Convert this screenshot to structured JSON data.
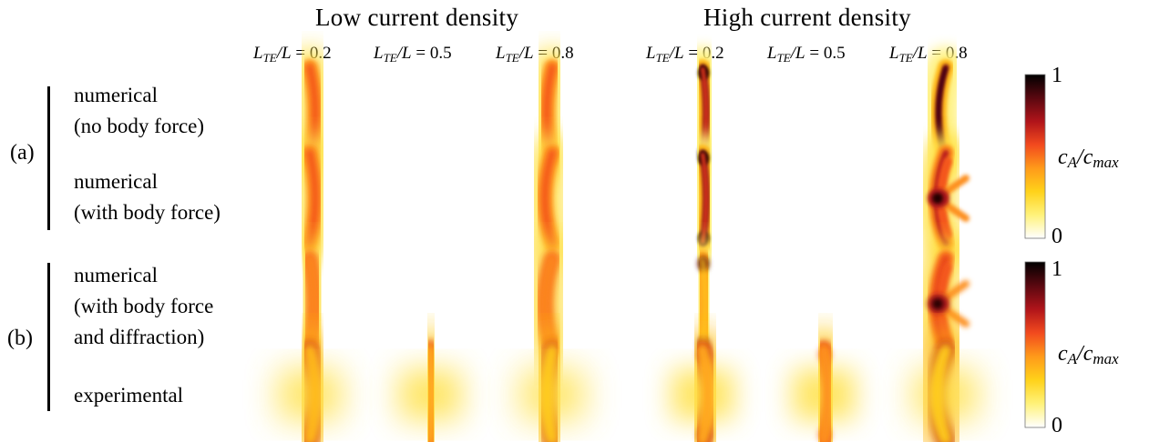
{
  "headers": {
    "low": "Low current density",
    "high": "High current density"
  },
  "columns": [
    {
      "ratio": "0.2"
    },
    {
      "ratio": "0.5"
    },
    {
      "ratio": "0.8"
    },
    {
      "ratio": "0.2"
    },
    {
      "ratio": "0.5"
    },
    {
      "ratio": "0.8"
    }
  ],
  "column_label": {
    "num": "L",
    "sub": "TE",
    "den": "/L = "
  },
  "groups": [
    {
      "label": "(a)",
      "rows": [
        {
          "lines": [
            "numerical",
            "(no body force)"
          ]
        },
        {
          "lines": [
            "numerical",
            "(with body force)"
          ]
        }
      ]
    },
    {
      "label": "(b)",
      "rows": [
        {
          "lines": [
            "numerical",
            "(with body force",
            "and diffraction)"
          ]
        },
        {
          "lines": [
            "experimental"
          ]
        }
      ]
    }
  ],
  "colorbar": {
    "max_label": "1",
    "min_label": "0",
    "label_main": "c",
    "label_sub1": "A",
    "label_mid": "/c",
    "label_sub2": "max",
    "stops": [
      "#ffffff",
      "#fff27a",
      "#ffd21a",
      "#ff9a1a",
      "#f24a1e",
      "#b0141a",
      "#5a0810",
      "#000000"
    ]
  },
  "panels": [
    [
      {
        "shape": "arc",
        "bulge": 6,
        "peak": 0.55,
        "ends": 0.0,
        "blur": 1.0,
        "halo": 0.35
      },
      {
        "shape": "bar",
        "bulge": 0,
        "peak": 0.6,
        "ends": 0.0,
        "blur": 0.8,
        "halo": 0.3
      },
      {
        "shape": "arc",
        "bulge": -6,
        "peak": 0.55,
        "ends": 0.0,
        "blur": 1.0,
        "halo": 0.35
      },
      {
        "shape": "dog",
        "bulge": 4,
        "peak": 0.8,
        "ends": 0.95,
        "blur": 0.6,
        "halo": 0.25
      },
      {
        "shape": "bar",
        "bulge": 0,
        "peak": 0.85,
        "ends": 0.5,
        "blur": 0.5,
        "halo": 0.25
      },
      {
        "shape": "arc",
        "bulge": -8,
        "peak": 0.8,
        "ends": 0.3,
        "blur": 0.6,
        "halo": 0.25
      }
    ],
    [
      {
        "shape": "arc",
        "bulge": 6,
        "peak": 0.55,
        "ends": 0.0,
        "blur": 1.0,
        "halo": 0.35
      },
      {
        "shape": "bar",
        "bulge": 0,
        "peak": 0.6,
        "ends": 0.0,
        "blur": 0.8,
        "halo": 0.3
      },
      {
        "shape": "arc",
        "bulge": -8,
        "peak": 0.55,
        "ends": 0.0,
        "blur": 1.0,
        "halo": 0.35
      },
      {
        "shape": "dog",
        "bulge": 4,
        "peak": 0.8,
        "ends": 0.95,
        "blur": 0.6,
        "halo": 0.25
      },
      {
        "shape": "bar",
        "bulge": 0,
        "peak": 0.9,
        "ends": 0.5,
        "blur": 0.5,
        "halo": 0.25
      },
      {
        "shape": "hot",
        "bulge": -10,
        "peak": 0.7,
        "ends": 0.0,
        "blur": 0.7,
        "halo": 0.35
      }
    ],
    [
      {
        "shape": "arc",
        "bulge": 5,
        "peak": 0.45,
        "ends": 0.0,
        "blur": 1.3,
        "halo": 0.4
      },
      {
        "shape": "bar",
        "bulge": 0,
        "peak": 0.5,
        "ends": 0.0,
        "blur": 1.1,
        "halo": 0.35
      },
      {
        "shape": "arc",
        "bulge": -8,
        "peak": 0.45,
        "ends": 0.0,
        "blur": 1.3,
        "halo": 0.4
      },
      {
        "shape": "dog",
        "bulge": 3,
        "peak": 0.4,
        "ends": 0.85,
        "blur": 1.0,
        "halo": 0.3
      },
      {
        "shape": "bar",
        "bulge": 0,
        "peak": 0.7,
        "ends": 0.4,
        "blur": 0.9,
        "halo": 0.3
      },
      {
        "shape": "hot",
        "bulge": -10,
        "peak": 0.6,
        "ends": 0.0,
        "blur": 1.0,
        "halo": 0.4
      }
    ],
    [
      {
        "shape": "exp",
        "bulge": 6,
        "peak": 0.35,
        "ends": 0.3,
        "blur": 1.5,
        "halo": 0.55
      },
      {
        "shape": "exp",
        "bulge": 2,
        "peak": 0.4,
        "ends": 0.3,
        "blur": 1.4,
        "halo": 0.5
      },
      {
        "shape": "exp",
        "bulge": -6,
        "peak": 0.3,
        "ends": 0.2,
        "blur": 1.6,
        "halo": 0.55
      },
      {
        "shape": "expd",
        "bulge": 6,
        "peak": 0.4,
        "ends": 0.7,
        "blur": 1.2,
        "halo": 0.55
      },
      {
        "shape": "expd",
        "bulge": 4,
        "peak": 0.45,
        "ends": 0.55,
        "blur": 1.2,
        "halo": 0.5
      },
      {
        "shape": "exp",
        "bulge": -10,
        "peak": 0.3,
        "ends": 0.1,
        "blur": 1.5,
        "halo": 0.6
      }
    ]
  ]
}
